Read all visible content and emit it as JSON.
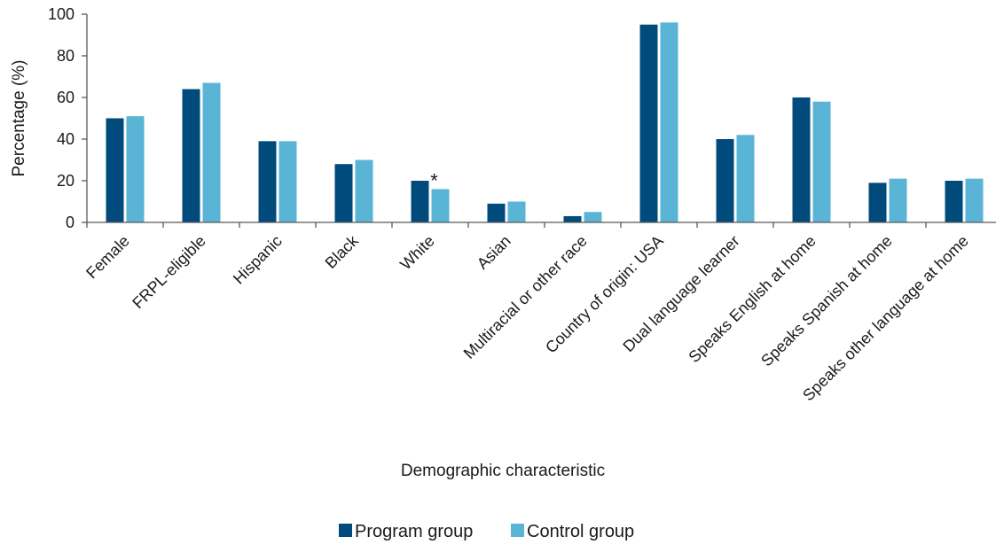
{
  "chart_data": {
    "type": "bar",
    "xlabel": "Demographic characteristic",
    "ylabel": "Percentage (%)",
    "ylim": [
      0,
      100
    ],
    "yticks": [
      0,
      20,
      40,
      60,
      80,
      100
    ],
    "grid": false,
    "legend_position": "bottom",
    "categories": [
      "Female",
      "FRPL-eligible",
      "Hispanic",
      "Black",
      "White",
      "Asian",
      "Multiracial or other race",
      "Country of origin: USA",
      "Dual language learner",
      "Speaks English at home",
      "Speaks Spanish at home",
      "Speaks other language at home"
    ],
    "series": [
      {
        "name": "Program group",
        "color": "#004b7c",
        "values": [
          50,
          64,
          39,
          28,
          20,
          9,
          3,
          95,
          40,
          60,
          19,
          20
        ]
      },
      {
        "name": "Control group",
        "color": "#5ab4d6",
        "values": [
          51,
          67,
          39,
          30,
          16,
          10,
          5,
          96,
          42,
          58,
          21,
          21
        ]
      }
    ],
    "annotations": [
      {
        "text": "*",
        "category_index": 4,
        "series_index": 1
      }
    ]
  }
}
